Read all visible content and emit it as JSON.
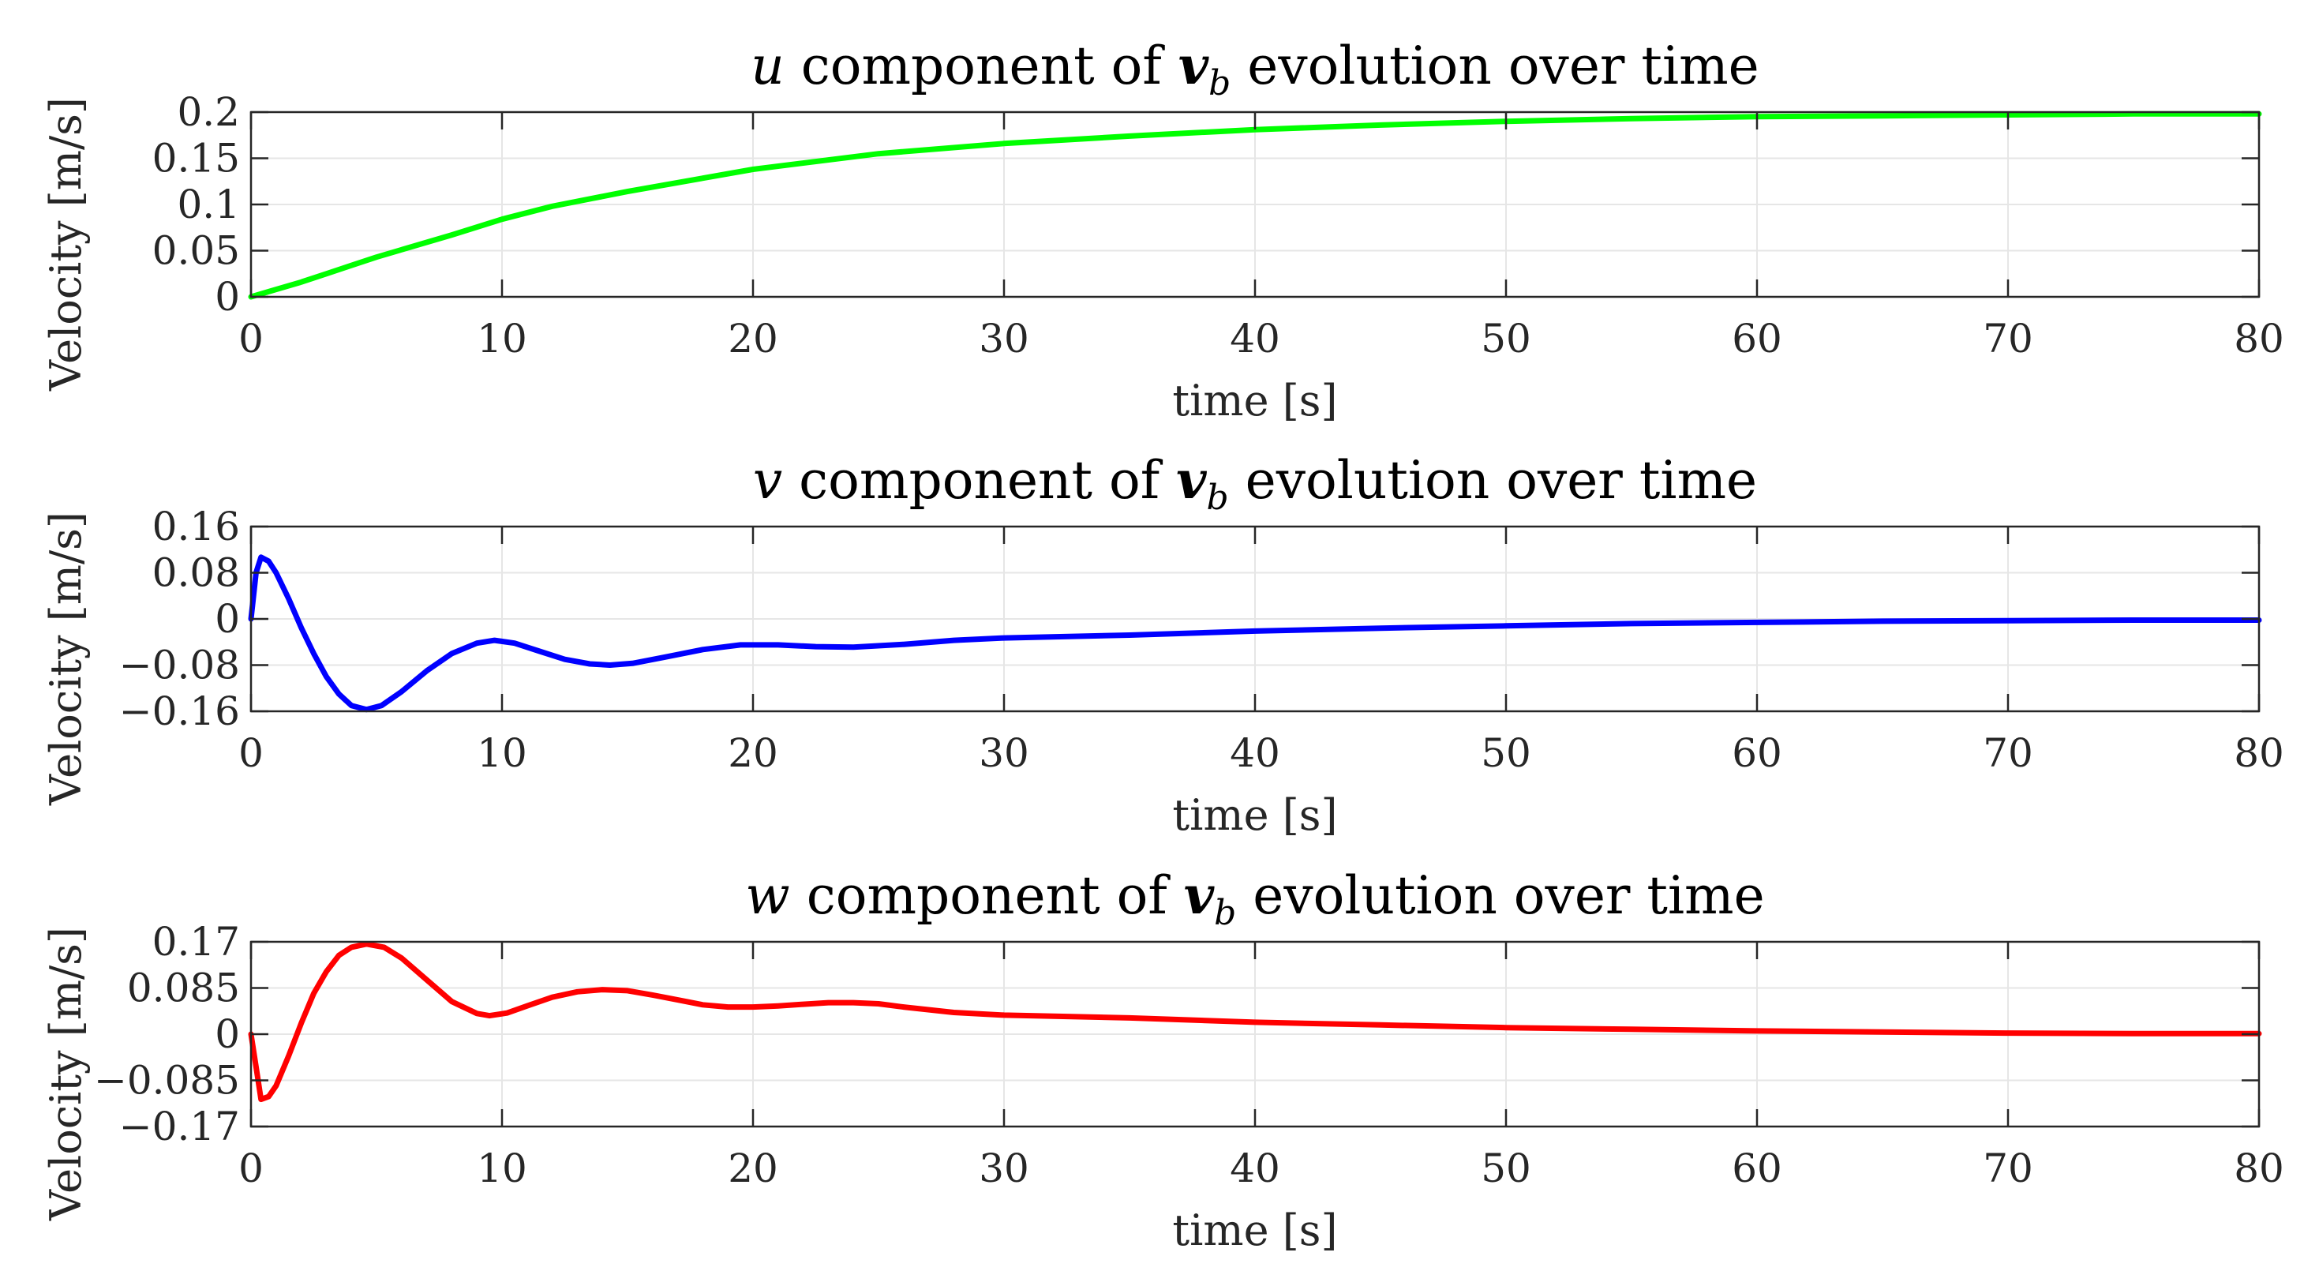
{
  "chart_data": [
    {
      "type": "line",
      "title": {
        "var": "u",
        "text": " component of ",
        "vec": "v",
        "sub": "b",
        "rest": " evolution over time"
      },
      "xlabel": "time [s]",
      "ylabel": "Velocity [m/s]",
      "xlim": [
        0,
        80
      ],
      "ylim": [
        0,
        0.2
      ],
      "xticks": [
        0,
        10,
        20,
        30,
        40,
        50,
        60,
        70,
        80
      ],
      "xtick_labels": [
        "0",
        "10",
        "20",
        "30",
        "40",
        "50",
        "60",
        "70",
        "80"
      ],
      "yticks": [
        0,
        0.05,
        0.1,
        0.15,
        0.2
      ],
      "ytick_labels": [
        "0",
        "0.05",
        "0.1",
        "0.15",
        "0.2"
      ],
      "grid": true,
      "color": "#00ff00",
      "x": [
        0,
        1,
        2,
        3,
        4,
        5,
        6,
        8,
        10,
        12,
        15,
        20,
        25,
        30,
        35,
        40,
        45,
        50,
        55,
        60,
        65,
        70,
        75,
        80
      ],
      "y": [
        0,
        0.008,
        0.016,
        0.025,
        0.034,
        0.043,
        0.051,
        0.067,
        0.084,
        0.098,
        0.114,
        0.138,
        0.155,
        0.166,
        0.174,
        0.181,
        0.186,
        0.19,
        0.193,
        0.195,
        0.196,
        0.197,
        0.198,
        0.198
      ]
    },
    {
      "type": "line",
      "title": {
        "var": "v",
        "text": " component of ",
        "vec": "v",
        "sub": "b",
        "rest": " evolution over time"
      },
      "xlabel": "time [s]",
      "ylabel": "Velocity [m/s]",
      "xlim": [
        0,
        80
      ],
      "ylim": [
        -0.16,
        0.16
      ],
      "xticks": [
        0,
        10,
        20,
        30,
        40,
        50,
        60,
        70,
        80
      ],
      "xtick_labels": [
        "0",
        "10",
        "20",
        "30",
        "40",
        "50",
        "60",
        "70",
        "80"
      ],
      "yticks": [
        -0.16,
        -0.08,
        0,
        0.08,
        0.16
      ],
      "ytick_labels": [
        "−0.16",
        "−0.08",
        "0",
        "0.08",
        "0.16"
      ],
      "grid": true,
      "color": "#0000ff",
      "x": [
        0,
        0.2,
        0.4,
        0.7,
        1,
        1.5,
        2,
        2.5,
        3,
        3.5,
        4,
        4.6,
        5.2,
        6,
        7,
        8,
        9,
        9.7,
        10.5,
        11.5,
        12.5,
        13.5,
        14.3,
        15.2,
        16.5,
        18,
        19.5,
        21,
        22.5,
        24,
        26,
        28,
        30,
        35,
        40,
        45,
        50,
        55,
        60,
        65,
        70,
        75,
        80
      ],
      "y": [
        0,
        0.08,
        0.107,
        0.1,
        0.08,
        0.035,
        -0.015,
        -0.06,
        -0.1,
        -0.13,
        -0.15,
        -0.157,
        -0.15,
        -0.126,
        -0.09,
        -0.06,
        -0.042,
        -0.037,
        -0.042,
        -0.056,
        -0.07,
        -0.078,
        -0.08,
        -0.077,
        -0.066,
        -0.053,
        -0.045,
        -0.045,
        -0.048,
        -0.049,
        -0.044,
        -0.037,
        -0.033,
        -0.028,
        -0.021,
        -0.016,
        -0.012,
        -0.008,
        -0.006,
        -0.004,
        -0.003,
        -0.002,
        -0.002
      ]
    },
    {
      "type": "line",
      "title": {
        "var": "w",
        "text": " component of ",
        "vec": "v",
        "sub": "b",
        "rest": " evolution over time"
      },
      "xlabel": "time [s]",
      "ylabel": "Velocity [m/s]",
      "xlim": [
        0,
        80
      ],
      "ylim": [
        -0.17,
        0.17
      ],
      "xticks": [
        0,
        10,
        20,
        30,
        40,
        50,
        60,
        70,
        80
      ],
      "xtick_labels": [
        "0",
        "10",
        "20",
        "30",
        "40",
        "50",
        "60",
        "70",
        "80"
      ],
      "yticks": [
        -0.17,
        -0.085,
        0,
        0.085,
        0.17
      ],
      "ytick_labels": [
        "−0.17",
        "−0.085",
        "0",
        "0.085",
        "0.17"
      ],
      "grid": true,
      "color": "#ff0000",
      "x": [
        0,
        0.2,
        0.4,
        0.7,
        1,
        1.5,
        2,
        2.5,
        3,
        3.5,
        4,
        4.6,
        5.3,
        6,
        7,
        8,
        9,
        9.5,
        10.2,
        11,
        12,
        13,
        14,
        15,
        16,
        17,
        18,
        19,
        20,
        21,
        22,
        23,
        24,
        25,
        26,
        28,
        30,
        35,
        40,
        45,
        50,
        55,
        60,
        65,
        70,
        75,
        80
      ],
      "y": [
        0,
        -0.06,
        -0.12,
        -0.115,
        -0.095,
        -0.04,
        0.02,
        0.075,
        0.115,
        0.145,
        0.16,
        0.166,
        0.16,
        0.14,
        0.1,
        0.06,
        0.038,
        0.034,
        0.039,
        0.052,
        0.068,
        0.078,
        0.082,
        0.08,
        0.072,
        0.063,
        0.054,
        0.05,
        0.05,
        0.052,
        0.055,
        0.058,
        0.058,
        0.056,
        0.05,
        0.04,
        0.035,
        0.03,
        0.022,
        0.017,
        0.012,
        0.009,
        0.006,
        0.004,
        0.002,
        0.001,
        0.001
      ]
    }
  ]
}
